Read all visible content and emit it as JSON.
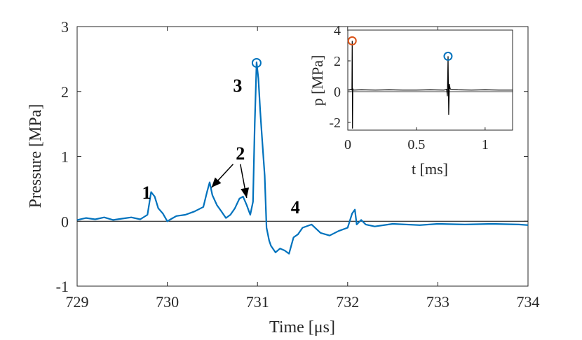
{
  "chart_data": [
    {
      "type": "line",
      "role": "main",
      "xlabel": "Time [μs]",
      "ylabel": "Pressure [MPa]",
      "xlim": [
        729,
        734
      ],
      "ylim": [
        -1,
        3
      ],
      "xticks": [
        729,
        730,
        731,
        732,
        733,
        734
      ],
      "xtick_labels": [
        "729",
        "730",
        "731",
        "732",
        "733",
        "734"
      ],
      "yticks": [
        -1,
        0,
        1,
        2,
        3
      ],
      "ytick_labels": [
        "-1",
        "0",
        "1",
        "2",
        "3"
      ],
      "zero_line": 0,
      "series": [
        {
          "name": "pressure",
          "color": "#0072BD",
          "x": [
            729.0,
            729.1,
            729.2,
            729.3,
            729.4,
            729.5,
            729.6,
            729.7,
            729.78,
            729.82,
            729.86,
            729.9,
            729.95,
            730.0,
            730.05,
            730.1,
            730.2,
            730.3,
            730.4,
            730.44,
            730.47,
            730.5,
            730.55,
            730.6,
            730.65,
            730.7,
            730.75,
            730.8,
            730.84,
            730.88,
            730.92,
            730.95,
            730.97,
            730.99,
            731.01,
            731.03,
            731.05,
            731.08,
            731.1,
            731.13,
            731.15,
            731.2,
            731.25,
            731.3,
            731.35,
            731.4,
            731.45,
            731.5,
            731.6,
            731.7,
            731.8,
            731.9,
            732.0,
            732.05,
            732.08,
            732.1,
            732.15,
            732.2,
            732.3,
            732.5,
            732.8,
            733.0,
            733.3,
            733.6,
            733.9,
            734.0
          ],
          "y": [
            0.02,
            0.05,
            0.03,
            0.06,
            0.02,
            0.04,
            0.06,
            0.03,
            0.1,
            0.45,
            0.38,
            0.2,
            0.12,
            0.0,
            0.04,
            0.08,
            0.1,
            0.15,
            0.22,
            0.45,
            0.6,
            0.4,
            0.25,
            0.15,
            0.05,
            0.1,
            0.2,
            0.35,
            0.38,
            0.25,
            0.1,
            0.3,
            1.5,
            2.45,
            2.2,
            1.7,
            1.3,
            0.7,
            -0.1,
            -0.3,
            -0.38,
            -0.48,
            -0.42,
            -0.45,
            -0.5,
            -0.25,
            -0.2,
            -0.1,
            -0.05,
            -0.18,
            -0.22,
            -0.15,
            -0.1,
            0.12,
            0.18,
            -0.05,
            0.02,
            -0.05,
            -0.08,
            -0.04,
            -0.06,
            -0.04,
            -0.05,
            -0.04,
            -0.05,
            -0.06
          ]
        }
      ],
      "markers": [
        {
          "name": "peak-3",
          "x": 730.99,
          "y": 2.44,
          "shape": "circle-open",
          "color": "#0072BD"
        }
      ],
      "annotations": [
        {
          "text": "1",
          "x": 729.77,
          "y": 0.35
        },
        {
          "text": "2",
          "x": 730.81,
          "y": 0.95
        },
        {
          "text": "3",
          "x": 730.78,
          "y": 2.0
        },
        {
          "text": "4",
          "x": 731.42,
          "y": 0.12
        }
      ],
      "arrows": [
        {
          "from": [
            730.73,
            0.88
          ],
          "to": [
            730.49,
            0.52
          ]
        },
        {
          "from": [
            730.81,
            0.88
          ],
          "to": [
            730.88,
            0.36
          ]
        }
      ]
    },
    {
      "type": "line",
      "role": "inset",
      "xlabel": "t [ms]",
      "ylabel": "p [MPa]",
      "xlim": [
        0,
        1.2
      ],
      "ylim": [
        -2.5,
        4
      ],
      "xticks": [
        0,
        0.5,
        1
      ],
      "xtick_labels": [
        "0",
        "0.5",
        "1"
      ],
      "yticks": [
        -2,
        0,
        2,
        4
      ],
      "ytick_labels": [
        "-2",
        "0",
        "2",
        "4"
      ],
      "zero_line": 0,
      "series": [
        {
          "name": "pressure-full",
          "color": "#000000",
          "x": [
            0.0,
            0.01,
            0.02,
            0.03,
            0.032,
            0.034,
            0.036,
            0.04,
            0.1,
            0.2,
            0.3,
            0.4,
            0.5,
            0.6,
            0.7,
            0.72,
            0.725,
            0.73,
            0.735,
            0.74,
            0.745,
            0.75,
            0.8,
            0.9,
            1.0,
            1.1,
            1.2
          ],
          "y": [
            0.12,
            0.1,
            0.15,
            0.1,
            3.3,
            -2.4,
            0.2,
            0.1,
            0.12,
            0.1,
            0.12,
            0.1,
            0.1,
            0.12,
            0.1,
            0.15,
            -0.3,
            2.3,
            -1.5,
            0.5,
            0.2,
            0.15,
            0.12,
            0.1,
            0.12,
            0.1,
            0.1
          ]
        }
      ],
      "markers": [
        {
          "name": "first-peak",
          "x": 0.032,
          "y": 3.3,
          "shape": "circle-open",
          "color": "#D95319"
        },
        {
          "name": "second-peak",
          "x": 0.73,
          "y": 2.3,
          "shape": "circle-open",
          "color": "#0072BD"
        }
      ]
    }
  ]
}
